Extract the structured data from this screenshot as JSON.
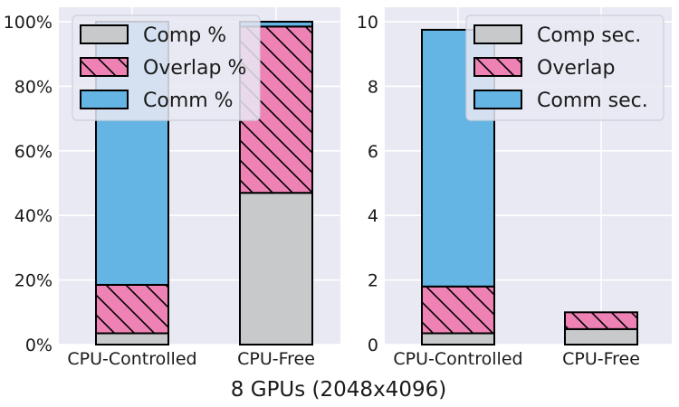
{
  "chart_data": [
    {
      "type": "bar",
      "stacked": true,
      "title": "",
      "ylabel": "",
      "categories": [
        "CPU-Controlled",
        "CPU-Free"
      ],
      "series": [
        {
          "name": "Comp %",
          "values": [
            3.5,
            47
          ]
        },
        {
          "name": "Overlap %",
          "values": [
            15,
            51.5
          ]
        },
        {
          "name": "Comm %",
          "values": [
            81.5,
            1.5
          ]
        }
      ],
      "ylim": [
        0,
        100
      ],
      "yticks": [
        "0%",
        "20%",
        "40%",
        "60%",
        "80%",
        "100%"
      ],
      "legend_position": "top-left"
    },
    {
      "type": "bar",
      "stacked": true,
      "title": "",
      "ylabel": "",
      "categories": [
        "CPU-Controlled",
        "CPU-Free"
      ],
      "series": [
        {
          "name": "Comp sec.",
          "values": [
            0.35,
            0.48
          ]
        },
        {
          "name": "Overlap",
          "values": [
            1.45,
            0.52
          ]
        },
        {
          "name": "Comm sec.",
          "values": [
            7.95,
            0.0
          ]
        }
      ],
      "ylim": [
        0,
        10
      ],
      "yticks": [
        "0",
        "2",
        "4",
        "6",
        "8",
        "10"
      ],
      "legend_position": "top-right"
    }
  ],
  "xlabel": "8 GPUs (2048x4096)",
  "colors": {
    "comp": "#c7c9cb",
    "overlap": "#ee82b4",
    "comm": "#64b5e3"
  },
  "hatch": {
    "comp": "none",
    "overlap": "diagonal",
    "comm": "none"
  }
}
